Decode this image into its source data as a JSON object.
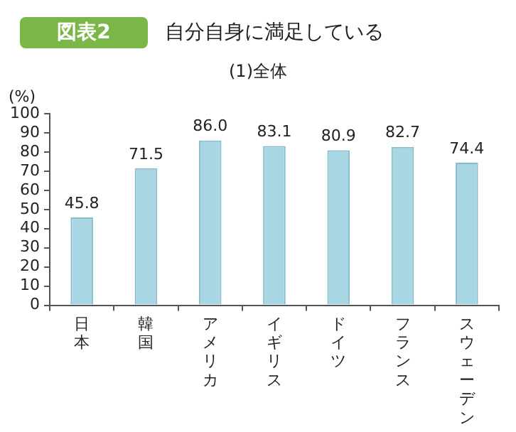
{
  "chart_data": {
    "type": "bar",
    "title": "自分自身に満足している",
    "subtitle": "(1)全体",
    "ylabel": "(%)",
    "annotations": [
      "図表2"
    ],
    "categories": [
      "日本",
      "韓国",
      "アメリカ",
      "イギリス",
      "ドイツ",
      "フランス",
      "スウェーデン"
    ],
    "values": [
      45.8,
      71.5,
      86.0,
      83.1,
      80.9,
      82.7,
      74.4
    ],
    "color": "#a9d6e3",
    "value_labels": [
      "45.8",
      "71.5",
      "86.0",
      "83.1",
      "80.9",
      "82.7",
      "74.4"
    ],
    "ylim": [
      0,
      100
    ],
    "yticks": [
      0,
      10,
      20,
      30,
      40,
      50,
      60,
      70,
      80,
      90,
      100
    ],
    "grid": false,
    "legend": false
  }
}
